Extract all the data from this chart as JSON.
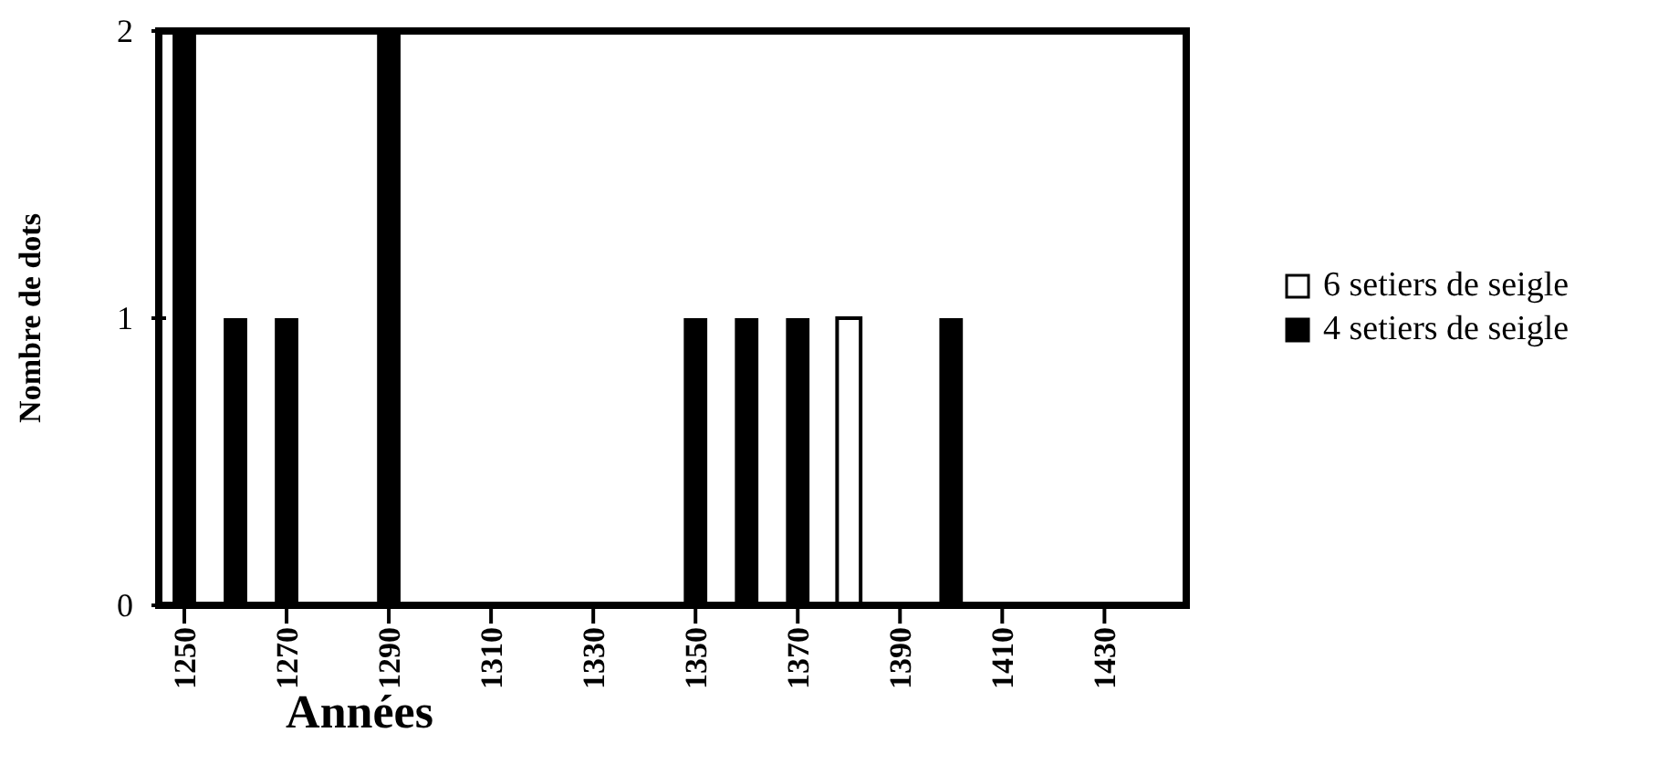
{
  "chart_data": {
    "type": "bar",
    "xlabel": "Années",
    "ylabel": "Nombre de dots",
    "xlim": [
      1245,
      1446
    ],
    "xticks": [
      1250,
      1270,
      1290,
      1310,
      1330,
      1350,
      1370,
      1390,
      1410,
      1430
    ],
    "ylim": [
      0,
      2
    ],
    "yticks": [
      0,
      1,
      2
    ],
    "grid": false,
    "legend": "right",
    "series": [
      {
        "name": "6 setiers de seigle",
        "color": "#ffffff",
        "x": [
          1380
        ],
        "values": [
          1
        ]
      },
      {
        "name": "4 setiers de seigle",
        "color": "#000000",
        "x": [
          1250,
          1260,
          1270,
          1290,
          1350,
          1360,
          1370,
          1400
        ],
        "values": [
          2,
          1,
          1,
          2,
          1,
          1,
          1,
          1
        ]
      }
    ]
  }
}
